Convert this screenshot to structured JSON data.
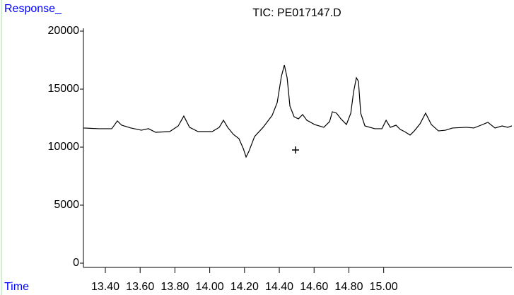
{
  "chart_data": {
    "type": "line",
    "title": "TIC: PE017147.D",
    "ylabel": "Response_",
    "xlabel": "Time",
    "color": "#000000",
    "xlim": [
      13.274,
      15.737
    ],
    "ylim": [
      0,
      20000
    ],
    "xticks": [
      {
        "value": 13.4,
        "label": "13.40"
      },
      {
        "value": 13.6,
        "label": "13.60"
      },
      {
        "value": 13.8,
        "label": "13.80"
      },
      {
        "value": 14.0,
        "label": "14.00"
      },
      {
        "value": 14.2,
        "label": "14.20"
      },
      {
        "value": 14.4,
        "label": "14.40"
      },
      {
        "value": 14.6,
        "label": "14.60"
      },
      {
        "value": 14.8,
        "label": "14.80"
      },
      {
        "value": 15.0,
        "label": "15.00"
      }
    ],
    "yticks": [
      0,
      5000,
      10000,
      15000,
      20000
    ],
    "x": [
      13.274,
      13.363,
      13.437,
      13.469,
      13.494,
      13.547,
      13.607,
      13.648,
      13.689,
      13.77,
      13.819,
      13.851,
      13.884,
      13.933,
      14.014,
      14.055,
      14.079,
      14.103,
      14.136,
      14.168,
      14.193,
      14.209,
      14.225,
      14.258,
      14.307,
      14.359,
      14.388,
      14.412,
      14.429,
      14.445,
      14.461,
      14.485,
      14.51,
      14.534,
      14.558,
      14.603,
      14.656,
      14.689,
      14.705,
      14.729,
      14.754,
      14.786,
      14.811,
      14.827,
      14.843,
      14.855,
      14.868,
      14.892,
      14.949,
      14.99,
      15.014,
      15.038,
      15.071,
      15.095,
      15.12,
      15.152,
      15.176,
      15.209,
      15.241,
      15.274,
      15.315,
      15.355,
      15.396,
      15.477,
      15.518,
      15.559,
      15.599,
      15.64,
      15.681,
      15.713,
      15.737
    ],
    "values": [
      11650,
      11590,
      11590,
      12260,
      11890,
      11650,
      11460,
      11590,
      11280,
      11340,
      11830,
      12680,
      11710,
      11340,
      11340,
      11710,
      12320,
      11710,
      11100,
      10730,
      9880,
      9150,
      9630,
      10920,
      11710,
      12740,
      13840,
      16100,
      17070,
      15980,
      13540,
      12620,
      12440,
      12810,
      12320,
      11950,
      11710,
      12200,
      13050,
      12930,
      12440,
      11950,
      12930,
      14760,
      15980,
      15670,
      12930,
      11830,
      11590,
      11590,
      12320,
      11710,
      11890,
      11530,
      11340,
      11040,
      11400,
      12010,
      12930,
      11950,
      11400,
      11460,
      11650,
      11710,
      11650,
      11890,
      12140,
      11650,
      11830,
      11710,
      11830
    ]
  }
}
